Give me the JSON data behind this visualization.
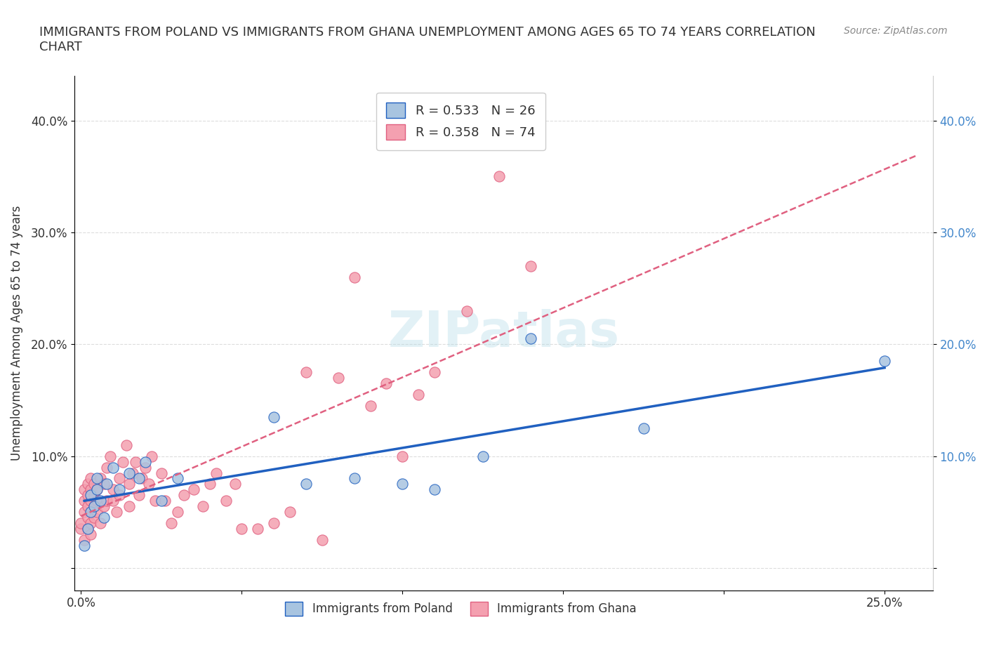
{
  "title": "IMMIGRANTS FROM POLAND VS IMMIGRANTS FROM GHANA UNEMPLOYMENT AMONG AGES 65 TO 74 YEARS CORRELATION\nCHART",
  "source": "Source: ZipAtlas.com",
  "xlabel": "",
  "ylabel": "Unemployment Among Ages 65 to 74 years",
  "xlim": [
    -0.002,
    0.265
  ],
  "ylim": [
    -0.02,
    0.44
  ],
  "xticks": [
    0.0,
    0.05,
    0.1,
    0.15,
    0.2,
    0.25
  ],
  "xticklabels": [
    "0.0%",
    "",
    "",
    "",
    "",
    "25.0%"
  ],
  "yticks": [
    0.0,
    0.1,
    0.2,
    0.3,
    0.4
  ],
  "yticklabels": [
    "",
    "10.0%",
    "20.0%",
    "30.0%",
    "40.0%"
  ],
  "background_color": "#ffffff",
  "grid_color": "#dddddd",
  "watermark": "ZIPatlas",
  "poland_color": "#a8c4e0",
  "ghana_color": "#f4a0b0",
  "poland_line_color": "#2060c0",
  "ghana_line_color": "#e06080",
  "poland_R": 0.533,
  "poland_N": 26,
  "ghana_R": 0.358,
  "ghana_N": 74,
  "poland_x": [
    0.001,
    0.002,
    0.003,
    0.003,
    0.004,
    0.005,
    0.005,
    0.006,
    0.007,
    0.008,
    0.01,
    0.012,
    0.015,
    0.018,
    0.02,
    0.025,
    0.03,
    0.06,
    0.07,
    0.085,
    0.1,
    0.11,
    0.125,
    0.14,
    0.175,
    0.25
  ],
  "poland_y": [
    0.02,
    0.035,
    0.05,
    0.065,
    0.055,
    0.07,
    0.08,
    0.06,
    0.045,
    0.075,
    0.09,
    0.07,
    0.085,
    0.08,
    0.095,
    0.06,
    0.08,
    0.135,
    0.075,
    0.08,
    0.075,
    0.07,
    0.1,
    0.205,
    0.125,
    0.185
  ],
  "ghana_x": [
    0.0,
    0.0,
    0.001,
    0.001,
    0.001,
    0.001,
    0.002,
    0.002,
    0.002,
    0.002,
    0.002,
    0.003,
    0.003,
    0.003,
    0.003,
    0.003,
    0.004,
    0.004,
    0.004,
    0.004,
    0.005,
    0.005,
    0.005,
    0.006,
    0.006,
    0.007,
    0.007,
    0.008,
    0.008,
    0.009,
    0.01,
    0.01,
    0.011,
    0.012,
    0.012,
    0.013,
    0.014,
    0.015,
    0.015,
    0.016,
    0.017,
    0.018,
    0.019,
    0.02,
    0.021,
    0.022,
    0.023,
    0.025,
    0.026,
    0.028,
    0.03,
    0.032,
    0.035,
    0.038,
    0.04,
    0.042,
    0.045,
    0.048,
    0.05,
    0.055,
    0.06,
    0.065,
    0.07,
    0.075,
    0.08,
    0.085,
    0.09,
    0.095,
    0.1,
    0.105,
    0.11,
    0.12,
    0.13,
    0.14
  ],
  "ghana_y": [
    0.035,
    0.04,
    0.025,
    0.05,
    0.06,
    0.07,
    0.035,
    0.045,
    0.055,
    0.065,
    0.075,
    0.03,
    0.04,
    0.06,
    0.07,
    0.08,
    0.045,
    0.055,
    0.065,
    0.075,
    0.05,
    0.06,
    0.07,
    0.04,
    0.08,
    0.055,
    0.075,
    0.06,
    0.09,
    0.1,
    0.06,
    0.07,
    0.05,
    0.065,
    0.08,
    0.095,
    0.11,
    0.055,
    0.075,
    0.085,
    0.095,
    0.065,
    0.08,
    0.09,
    0.075,
    0.1,
    0.06,
    0.085,
    0.06,
    0.04,
    0.05,
    0.065,
    0.07,
    0.055,
    0.075,
    0.085,
    0.06,
    0.075,
    0.035,
    0.035,
    0.04,
    0.05,
    0.175,
    0.025,
    0.17,
    0.26,
    0.145,
    0.165,
    0.1,
    0.155,
    0.175,
    0.23,
    0.35,
    0.27
  ]
}
